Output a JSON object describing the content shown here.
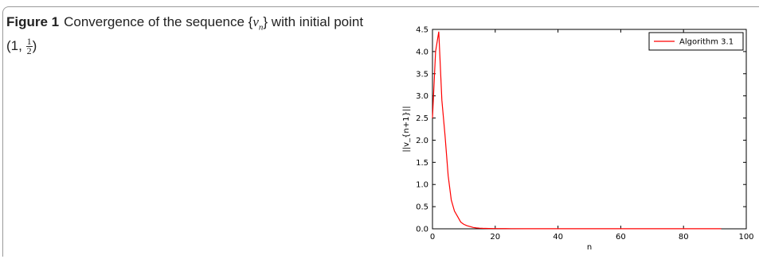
{
  "caption": {
    "label": "Figure 1",
    "text_before": "Convergence of the sequence {",
    "var": "v",
    "sub": "n",
    "text_mid": "} with initial point (1, ",
    "frac_num": "1",
    "frac_den": "2",
    "text_after": ")"
  },
  "chart_data": {
    "type": "line",
    "xlabel": "n",
    "ylabel": "||v_{n+1}||",
    "xlim": [
      0,
      100
    ],
    "ylim": [
      0,
      4.5
    ],
    "x_ticks": [
      0,
      20,
      40,
      60,
      80,
      100
    ],
    "y_ticks": [
      0.0,
      0.5,
      1.0,
      1.5,
      2.0,
      2.5,
      3.0,
      3.5,
      4.0,
      4.5
    ],
    "x_tick_labels": [
      "0",
      "20",
      "40",
      "60",
      "80",
      "100"
    ],
    "y_tick_labels": [
      "0.0",
      "0.5",
      "1.0",
      "1.5",
      "2.0",
      "2.5",
      "3.0",
      "3.5",
      "4.0",
      "4.5"
    ],
    "grid": false,
    "legend_position": "top-right",
    "series": [
      {
        "name": "Algorithm 3.1",
        "color": "#ff0000",
        "x": [
          0,
          1,
          2,
          3,
          4,
          5,
          6,
          7,
          8,
          9,
          10,
          11,
          12,
          13,
          14,
          15,
          16,
          18,
          20,
          25,
          30,
          40,
          50,
          60,
          70,
          80,
          92
        ],
        "y": [
          2.5,
          4.0,
          4.45,
          2.9,
          2.1,
          1.2,
          0.65,
          0.4,
          0.28,
          0.15,
          0.1,
          0.07,
          0.05,
          0.03,
          0.02,
          0.015,
          0.01,
          0.007,
          0.005,
          0.003,
          0.002,
          0.001,
          0.001,
          0.001,
          0.001,
          0.001,
          0.001
        ]
      }
    ]
  }
}
